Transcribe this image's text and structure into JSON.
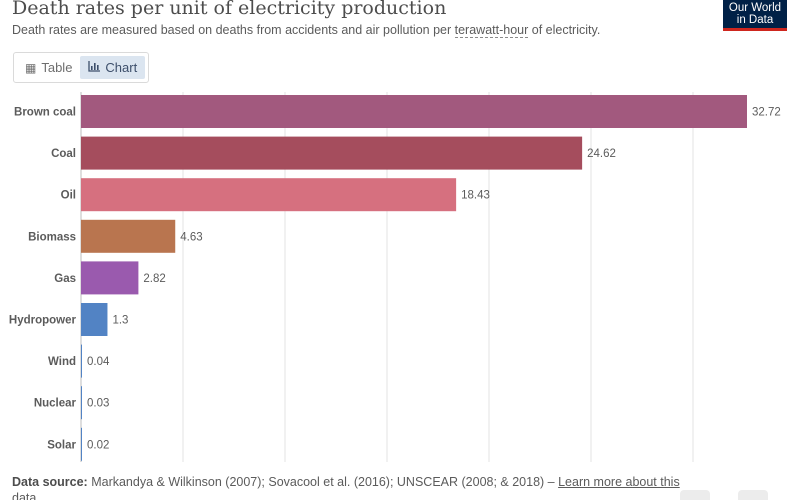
{
  "header": {
    "title": "Death rates per unit of electricity production",
    "subtitle_pre": "Death rates are measured based on deaths from accidents and air pollution per ",
    "subtitle_term": "terawatt-hour",
    "subtitle_post": " of electricity.",
    "logo_line1": "Our World",
    "logo_line2": "in Data"
  },
  "tabs": [
    {
      "label": "Table",
      "icon": "table-icon",
      "active": false
    },
    {
      "label": "Chart",
      "icon": "bar-chart-icon",
      "active": true
    }
  ],
  "chart_data": {
    "type": "bar",
    "orientation": "horizontal",
    "title": "Death rates per unit of electricity production",
    "xlabel": "",
    "ylabel": "",
    "xlim": [
      0,
      32.72
    ],
    "grid": true,
    "categories": [
      "Brown coal",
      "Coal",
      "Oil",
      "Biomass",
      "Gas",
      "Hydropower",
      "Wind",
      "Nuclear",
      "Solar"
    ],
    "values": [
      32.72,
      24.62,
      18.43,
      4.63,
      2.82,
      1.3,
      0.04,
      0.03,
      0.02
    ],
    "value_labels": [
      "32.72",
      "24.62",
      "18.43",
      "4.63",
      "2.82",
      "1.3",
      "0.04",
      "0.03",
      "0.02"
    ],
    "colors": [
      "#a2597e",
      "#a54d5d",
      "#d6707f",
      "#b9754f",
      "#9a5aae",
      "#5283c4",
      "#5283c4",
      "#5283c4",
      "#5283c4"
    ]
  },
  "footer": {
    "label": "Data source:",
    "text": " Markandya & Wilkinson (2007); Sovacool et al. (2016); UNSCEAR (2008; & 2018) – ",
    "link": "Learn more about this data"
  }
}
